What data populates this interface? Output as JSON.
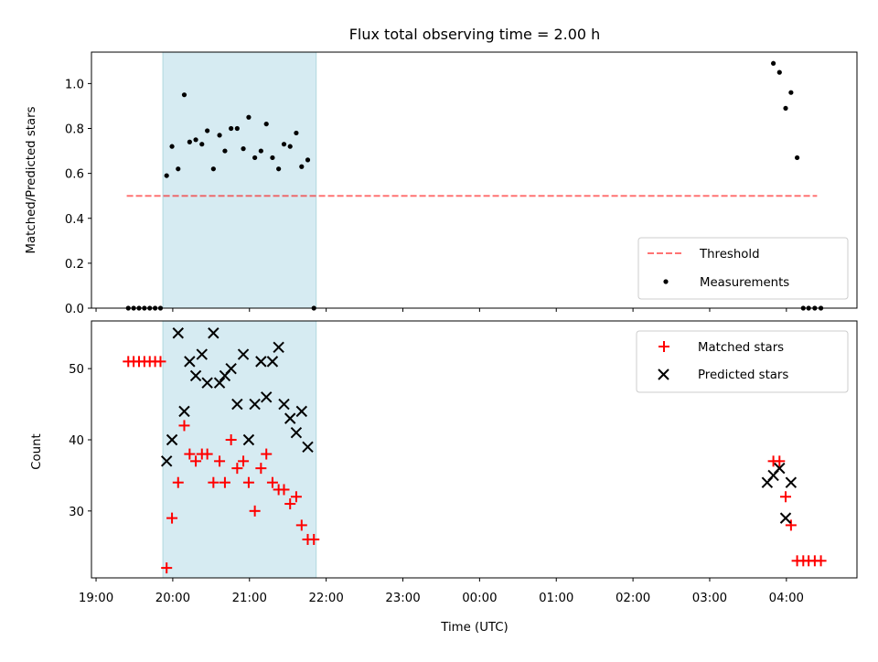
{
  "figure": {
    "title": "Flux total observing time = 2.00 h",
    "xlabel": "Time (UTC)",
    "xtick_labels": [
      "19:00",
      "20:00",
      "21:00",
      "22:00",
      "23:00",
      "00:00",
      "01:00",
      "02:00",
      "03:00",
      "04:00"
    ]
  },
  "chart_data": [
    {
      "type": "scatter",
      "title": "Flux total observing time = 2.00 h",
      "xlabel": "",
      "ylabel": "Matched/Predicted stars",
      "x_unit": "hours since 19:00 UTC",
      "xlim": [
        -0.06,
        9.92
      ],
      "ylim": [
        0.0,
        1.14
      ],
      "yticks": [
        0.0,
        0.2,
        0.4,
        0.6,
        0.8,
        1.0
      ],
      "ytick_labels": [
        "0.0",
        "0.2",
        "0.4",
        "0.6",
        "0.8",
        "1.0"
      ],
      "highlight_span": {
        "x": [
          0.87,
          2.87
        ],
        "color": "#add8e6"
      },
      "threshold": {
        "name": "Threshold",
        "y": 0.5,
        "x": [
          0.4,
          9.4
        ],
        "color": "#ff0000",
        "style": "dashed"
      },
      "series": [
        {
          "name": "Measurements",
          "color": "#000000",
          "marker": "dot",
          "x": [
            0.42,
            0.49,
            0.56,
            0.63,
            0.7,
            0.77,
            0.84,
            0.92,
            0.99,
            1.07,
            1.15,
            1.22,
            1.3,
            1.38,
            1.45,
            1.53,
            1.61,
            1.68,
            1.76,
            1.84,
            1.92,
            1.99,
            2.07,
            2.15,
            2.22,
            2.3,
            2.38,
            2.45,
            2.53,
            2.61,
            2.68,
            2.76,
            2.84,
            8.83,
            8.91,
            8.99,
            9.06,
            9.14,
            9.22,
            9.29,
            9.37,
            9.45
          ],
          "y": [
            0.0,
            0.0,
            0.0,
            0.0,
            0.0,
            0.0,
            0.0,
            0.59,
            0.72,
            0.62,
            0.95,
            0.74,
            0.75,
            0.73,
            0.79,
            0.62,
            0.77,
            0.7,
            0.8,
            0.8,
            0.71,
            0.85,
            0.67,
            0.7,
            0.82,
            0.67,
            0.62,
            0.73,
            0.72,
            0.78,
            0.63,
            0.66,
            0.0,
            1.09,
            1.05,
            0.89,
            0.96,
            0.67,
            0.0,
            0.0,
            0.0,
            0.0
          ]
        }
      ],
      "legend": {
        "position": "lower-right",
        "entries": [
          "Threshold",
          "Measurements"
        ]
      }
    },
    {
      "type": "scatter",
      "xlabel": "Time (UTC)",
      "ylabel": "Count",
      "x_unit": "hours since 19:00 UTC",
      "xlim": [
        -0.06,
        9.92
      ],
      "ylim": [
        20.6,
        56.7
      ],
      "yticks": [
        30,
        40,
        50
      ],
      "ytick_labels": [
        "30",
        "40",
        "50"
      ],
      "xtick_labels": [
        "19:00",
        "20:00",
        "21:00",
        "22:00",
        "23:00",
        "00:00",
        "01:00",
        "02:00",
        "03:00",
        "04:00"
      ],
      "highlight_span": {
        "x": [
          0.87,
          2.87
        ],
        "color": "#add8e6"
      },
      "series": [
        {
          "name": "Matched stars",
          "color": "#ff0000",
          "marker": "plus",
          "x": [
            0.42,
            0.49,
            0.56,
            0.63,
            0.7,
            0.77,
            0.84,
            0.92,
            0.99,
            1.07,
            1.15,
            1.22,
            1.3,
            1.38,
            1.45,
            1.53,
            1.61,
            1.68,
            1.76,
            1.84,
            1.92,
            1.99,
            2.07,
            2.15,
            2.22,
            2.3,
            2.38,
            2.45,
            2.53,
            2.61,
            2.68,
            2.76,
            2.84,
            8.83,
            8.91,
            8.99,
            9.06,
            9.14,
            9.22,
            9.29,
            9.37,
            9.45
          ],
          "y": [
            51,
            51,
            51,
            51,
            51,
            51,
            51,
            22,
            29,
            34,
            42,
            38,
            37,
            38,
            38,
            34,
            37,
            34,
            40,
            36,
            37,
            34,
            30,
            36,
            38,
            34,
            33,
            33,
            31,
            32,
            28,
            26,
            26,
            37,
            37,
            32,
            28,
            23,
            23,
            23,
            23,
            23
          ]
        },
        {
          "name": "Predicted stars",
          "color": "#000000",
          "marker": "x",
          "x": [
            0.92,
            0.99,
            1.07,
            1.15,
            1.22,
            1.3,
            1.38,
            1.45,
            1.53,
            1.61,
            1.68,
            1.76,
            1.84,
            1.92,
            1.99,
            2.07,
            2.15,
            2.22,
            2.3,
            2.38,
            2.45,
            2.53,
            2.61,
            2.68,
            2.76,
            8.75,
            8.83,
            8.91,
            8.99,
            9.06
          ],
          "y": [
            37,
            40,
            55,
            44,
            51,
            49,
            52,
            48,
            55,
            48,
            49,
            50,
            45,
            52,
            40,
            45,
            51,
            46,
            51,
            53,
            45,
            43,
            41,
            44,
            39,
            34,
            35,
            36,
            29,
            34
          ]
        }
      ],
      "legend": {
        "position": "upper-right",
        "entries": [
          "Matched stars",
          "Predicted stars"
        ]
      }
    }
  ]
}
